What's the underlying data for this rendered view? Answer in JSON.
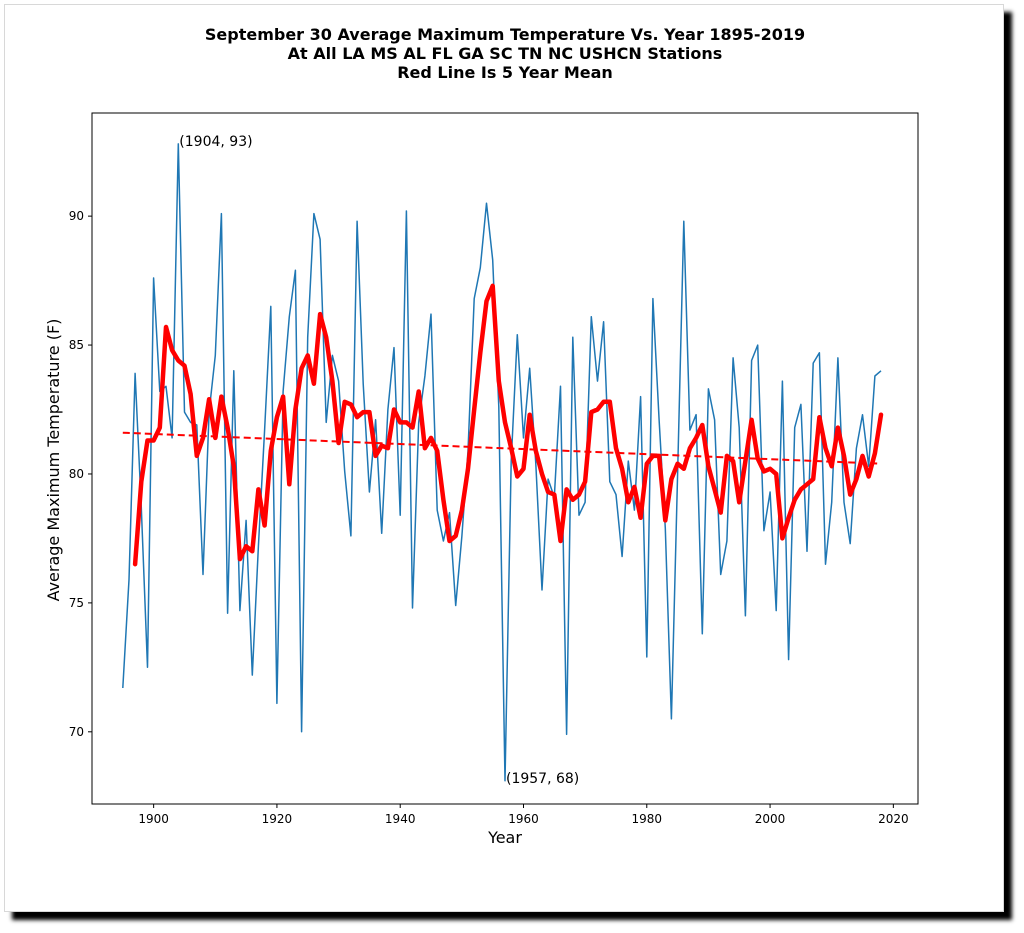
{
  "chart_data": {
    "type": "line",
    "title": [
      "September 30 Average Maximum Temperature Vs. Year 1895-2019",
      "At All LA MS AL FL GA SC TN NC USHCN Stations",
      "Red Line Is 5 Year Mean"
    ],
    "xlabel": "Year",
    "ylabel": "Average Maximum Temperature (F)",
    "xlim": [
      1890,
      2024
    ],
    "ylim": [
      67.2,
      94.0
    ],
    "xticks": [
      1900,
      1920,
      1940,
      1960,
      1980,
      2000,
      2020
    ],
    "yticks": [
      70,
      75,
      80,
      85,
      90
    ],
    "grid": false,
    "colors": {
      "yearly": "#1f77b4",
      "mean": "#ff0000",
      "trend": "#ff0000"
    },
    "series": [
      {
        "style": "thin-blue",
        "x_start": 1895,
        "values": [
          71.7,
          75.9,
          83.9,
          78.7,
          72.5,
          87.6,
          83.2,
          83.4,
          81.4,
          92.8,
          82.4,
          82.0,
          81.9,
          76.1,
          82.4,
          84.6,
          90.1,
          74.6,
          84.0,
          74.7,
          78.2,
          72.2,
          77.2,
          81.7,
          86.5,
          71.1,
          83.2,
          86.1,
          87.9,
          70.0,
          85.3,
          90.1,
          89.1,
          82.0,
          84.6,
          83.6,
          80.1,
          77.6,
          89.8,
          83.5,
          79.3,
          82.1,
          77.7,
          82.5,
          84.9,
          78.4,
          90.2,
          74.8,
          82.0,
          83.8,
          86.2,
          78.6,
          77.4,
          78.5,
          74.9,
          77.6,
          80.9,
          86.8,
          88.0,
          90.5,
          88.3,
          82.6,
          68.1,
          80.5,
          85.4,
          81.4,
          84.1,
          80.4,
          75.5,
          79.8,
          79.1,
          83.4,
          69.9,
          85.3,
          78.4,
          78.9,
          86.1,
          83.6,
          85.9,
          79.7,
          79.2,
          76.8,
          80.5,
          78.6,
          83.0,
          72.9,
          86.8,
          82.1,
          77.9,
          70.5,
          80.0,
          89.8,
          81.7,
          82.3,
          73.8,
          83.3,
          82.1,
          76.1,
          77.4,
          84.5,
          81.8,
          74.5,
          84.4,
          85.0,
          77.8,
          79.3,
          74.7,
          83.6,
          72.8,
          81.8,
          82.7,
          77.0,
          84.3,
          84.7,
          76.5,
          78.9,
          84.5,
          78.9,
          77.3,
          81.0,
          82.3,
          80.3,
          83.8,
          84.0
        ]
      },
      {
        "name": "5 Year Mean",
        "style": "thick-red",
        "x_start": 1897,
        "values": [
          76.5,
          79.7,
          81.3,
          81.3,
          81.8,
          85.7,
          84.8,
          84.4,
          84.2,
          83.1,
          80.7,
          81.4,
          82.9,
          81.4,
          83.0,
          81.8,
          80.3,
          76.7,
          77.2,
          77.0,
          79.4,
          78.0,
          80.9,
          82.2,
          83.0,
          79.6,
          82.5,
          84.1,
          84.6,
          83.5,
          86.2,
          85.3,
          83.6,
          81.2,
          82.8,
          82.7,
          82.2,
          82.4,
          82.4,
          80.7,
          81.1,
          81.0,
          82.5,
          82.0,
          82.0,
          81.8,
          83.2,
          81.0,
          81.4,
          80.9,
          79.0,
          77.4,
          77.6,
          78.6,
          80.2,
          82.5,
          84.7,
          86.7,
          87.3,
          83.6,
          82.0,
          81.0,
          79.9,
          80.2,
          82.3,
          80.9,
          80.0,
          79.3,
          79.2,
          77.4,
          79.4,
          79.0,
          79.2,
          79.7,
          82.4,
          82.5,
          82.8,
          82.8,
          81.0,
          80.2,
          78.9,
          79.5,
          78.3,
          80.4,
          80.7,
          80.7,
          78.2,
          79.8,
          80.4,
          80.2,
          81.0,
          81.4,
          81.9,
          80.3,
          79.4,
          78.5,
          80.7,
          80.5,
          78.9,
          80.5,
          82.1,
          80.6,
          80.1,
          80.2,
          80.0,
          77.5,
          78.3,
          79.0,
          79.4,
          79.6,
          79.8,
          82.2,
          81.0,
          80.3,
          81.8,
          80.7,
          79.2,
          79.8,
          80.7,
          79.9,
          80.8,
          82.3
        ]
      },
      {
        "style": "dashed-red-trend",
        "x": [
          1895,
          2018
        ],
        "y": [
          81.6,
          80.4
        ]
      }
    ],
    "annotations": [
      {
        "x": 1904,
        "y": 92.8,
        "text": "(1904, 93)"
      },
      {
        "x": 1957,
        "y": 68.1,
        "text": "(1957, 68)"
      }
    ]
  }
}
